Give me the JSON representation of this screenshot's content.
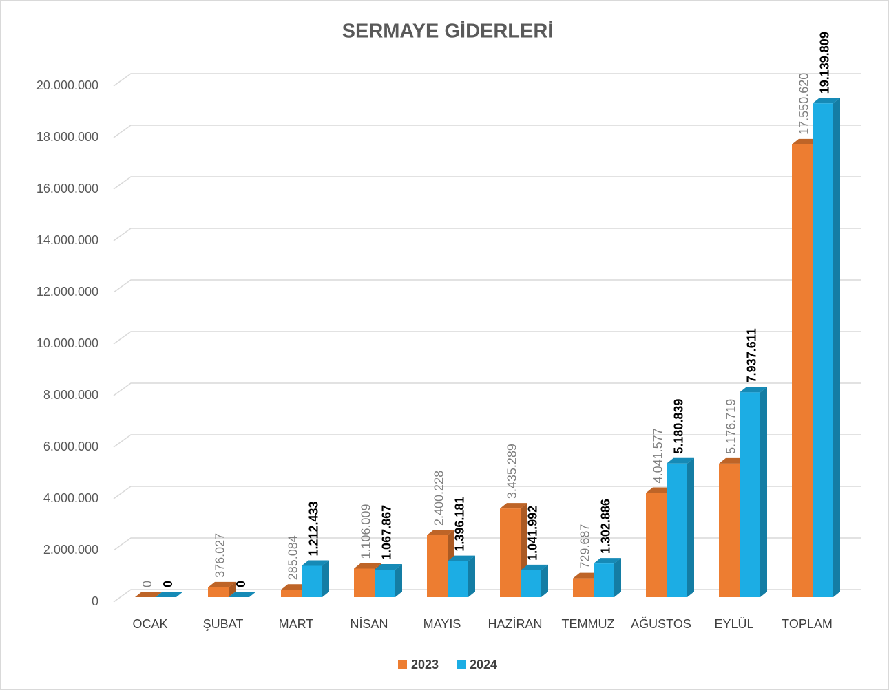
{
  "chart_data": {
    "type": "bar3d",
    "title": "SERMAYE GİDERLERİ",
    "categories": [
      "OCAK",
      "ŞUBAT",
      "MART",
      "NİSAN",
      "MAYIS",
      "HAZİRAN",
      "TEMMUZ",
      "AĞUSTOS",
      "EYLÜL",
      "TOPLAM"
    ],
    "series": [
      {
        "name": "2023",
        "color": "#ED7D31",
        "values": [
          0,
          376027,
          285084,
          1106009,
          2400228,
          3435289,
          729687,
          4041577,
          5176719,
          17550620
        ],
        "value_labels": [
          "0",
          "376.027",
          "285.084",
          "1.106.009",
          "2.400.228",
          "3.435.289",
          "729.687",
          "4.041.577",
          "5.176.719",
          "17.550.620"
        ]
      },
      {
        "name": "2024",
        "color": "#1CADE4",
        "values": [
          0,
          0,
          1212433,
          1067867,
          1396181,
          1041992,
          1302886,
          5180839,
          7937611,
          19139809
        ],
        "value_labels": [
          "0",
          "0",
          "1.212.433",
          "1.067.867",
          "1.396.181",
          "1.041.992",
          "1.302.886",
          "5.180.839",
          "7.937.611",
          "19.139.809"
        ]
      }
    ],
    "ylim": [
      0,
      20000000
    ],
    "yticks": [
      0,
      {
        "value": 2000000,
        "label": "2.000.000"
      },
      {
        "value": 4000000,
        "label": "4.000.000"
      },
      {
        "value": 6000000,
        "label": "6.000.000"
      },
      {
        "value": 8000000,
        "label": "8.000.000"
      },
      {
        "value": 10000000,
        "label": "10.000.000"
      },
      {
        "value": 12000000,
        "label": "12.000.000"
      },
      {
        "value": 14000000,
        "label": "14.000.000"
      },
      {
        "value": 16000000,
        "label": "16.000.000"
      },
      {
        "value": 18000000,
        "label": "18.000.000"
      },
      {
        "value": 20000000,
        "label": "20.000.000"
      }
    ],
    "grid": true,
    "legend": "bottom"
  }
}
